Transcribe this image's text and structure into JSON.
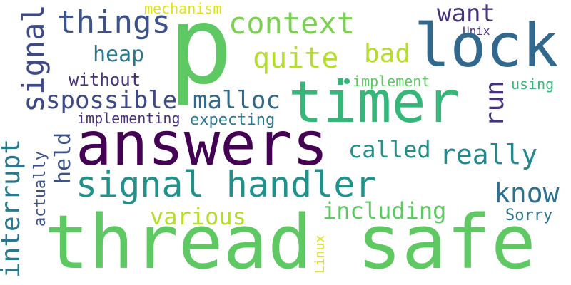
{
  "words": {
    "thread_safe": {
      "text": "thread safe",
      "color": "#5ec962"
    },
    "p": {
      "text": "p",
      "color": "#5ec962"
    },
    "answers": {
      "text": "answers",
      "color": "#440154"
    },
    "timer": {
      "text": "timer",
      "color": "#35b779"
    },
    "lock": {
      "text": "lock",
      "color": "#31688e"
    },
    "signal_handler": {
      "text": "signal handler",
      "color": "#21918c"
    },
    "things": {
      "text": "things",
      "color": "#3b528b"
    },
    "context": {
      "text": "context",
      "color": "#7ad151"
    },
    "quite": {
      "text": "quite",
      "color": "#b5de2b"
    },
    "bad": {
      "text": "bad",
      "color": "#b5de2b"
    },
    "want": {
      "text": "want",
      "color": "#46337e"
    },
    "heap": {
      "text": "heap",
      "color": "#2a788e"
    },
    "without": {
      "text": "without",
      "color": "#46337e"
    },
    "spossible": {
      "text": "spossible",
      "color": "#3e4989"
    },
    "malloc": {
      "text": "malloc",
      "color": "#31688e"
    },
    "implementing": {
      "text": "implementing",
      "color": "#46337e"
    },
    "expecting": {
      "text": "expecting",
      "color": "#2a788e"
    },
    "mechanism": {
      "text": "mechanism",
      "color": "#dde318"
    },
    "unix": {
      "text": "Unix",
      "color": "#46337e"
    },
    "implement": {
      "text": "implement",
      "color": "#5ec962"
    },
    "using": {
      "text": "using",
      "color": "#35b779"
    },
    "called": {
      "text": "called",
      "color": "#21918c"
    },
    "really": {
      "text": "really",
      "color": "#23898e"
    },
    "know": {
      "text": "know",
      "color": "#2c728e"
    },
    "including": {
      "text": "including",
      "color": "#5ec962"
    },
    "various": {
      "text": "various",
      "color": "#b5de2b"
    },
    "sorry": {
      "text": "Sorry",
      "color": "#2c728e"
    },
    "signal": {
      "text": "signal",
      "color": "#3e4989"
    },
    "interrupt": {
      "text": "interrupt",
      "color": "#2a788e"
    },
    "held": {
      "text": "held",
      "color": "#3b528b"
    },
    "actually": {
      "text": "actually",
      "color": "#3b528b"
    },
    "run": {
      "text": "run",
      "color": "#46337e"
    },
    "linux": {
      "text": "Linux",
      "color": "#dde318"
    }
  },
  "dot_color": "#35b779"
}
